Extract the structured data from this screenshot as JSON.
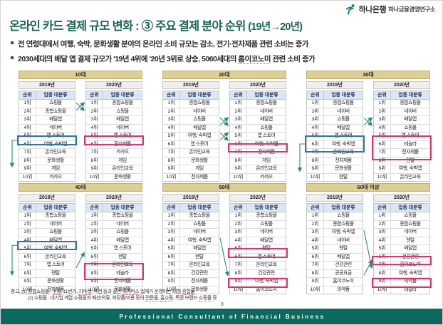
{
  "page": {
    "logo": {
      "bank": "하나은행",
      "institute": "하나금융경영연구소"
    },
    "title": {
      "main": "온라인 카드 결제 규모 변화 : ③ 주요 결제 분야 순위",
      "period": "(19년→20년)"
    },
    "bullets": [
      {
        "segments": [
          {
            "t": "전 연령대에서 여행, 숙박, 문화생활 분야의 온라인 소비 규모는 감소, 전기·전자제품 관련 소비는 증가"
          }
        ]
      },
      {
        "segments": [
          {
            "t": "2030세대의 배달 앱 결제 규모가 '19년 4위에 '20년 3위로 상승, 5060세대의 "
          },
          {
            "t": "홈이코노미",
            "u": true
          },
          {
            "t": " 관련 소비 증가"
          }
        ]
      }
    ],
    "footnotes": [
      {
        "segments": [
          {
            "t": "참고, (1) 종합쇼핑몰 : "
          },
          {
            "t": "쿠팡",
            "u": true
          },
          {
            "t": ", 11번가, "
          },
          {
            "t": "지마켓",
            "u": true
          },
          {
            "t": ", 옥션 등과 같은 "
          },
          {
            "t": "이커머스",
            "u": true
          },
          {
            "t": " 업체가 운영하는 대형 "
          },
          {
            "t": "종합몰",
            "u": true
          }
        ]
      },
      {
        "segments": [
          {
            "t": "(2) 쇼핑몰 : 대기업 계열 쇼핑몰과 패션/의류, 화장품/미용 등의 "
          },
          {
            "t": "전문몰",
            "u": true
          },
          {
            "t": ", "
          },
          {
            "t": "홈쇼핑",
            "u": true
          },
          {
            "t": ", 특정 브랜드 "
          },
          {
            "t": "쇼핑몰",
            "u": true
          },
          {
            "t": " 등"
          }
        ]
      }
    ],
    "page_number": "8",
    "footer_bar": "Professional Consultant of Financial Business"
  },
  "table_common": {
    "year_left": "2019년",
    "year_right": "2020년",
    "col_rank": "순위",
    "col_category": "업종 대분류"
  },
  "colors": {
    "title_green": "#1A685A",
    "arrow_teal": "#2B8A7D",
    "box_blue": "#2E75B6",
    "box_red": "#E0336E",
    "header_tan": "#DCCF92",
    "header_blue": "#DDE7F3",
    "footer_bar": "#0C695E"
  },
  "tables": [
    {
      "age_label": "10대",
      "left_rows": [
        [
          "1위",
          "쇼핑몰"
        ],
        [
          "2위",
          "종합쇼핑몰"
        ],
        [
          "3위",
          "배달앱"
        ],
        [
          "4위",
          "네이버"
        ],
        [
          "5위",
          "앱 스토어"
        ],
        [
          "6위",
          "여행, 숙박앱"
        ],
        [
          "7위",
          "온라인교육"
        ],
        [
          "8위",
          "문화생활"
        ],
        [
          "9위",
          "게임"
        ],
        [
          "10위",
          "카카오"
        ]
      ],
      "right_rows": [
        [
          "1위",
          "종합쇼핑몰"
        ],
        [
          "2위",
          "쇼핑몰"
        ],
        [
          "3위",
          "배달앱"
        ],
        [
          "4위",
          "네이버"
        ],
        [
          "5위",
          "앱 스토어"
        ],
        [
          "6위",
          "전자제품"
        ],
        [
          "7위",
          "카카오"
        ],
        [
          "8위",
          "게임"
        ],
        [
          "9위",
          "온라인교육"
        ],
        [
          "10위",
          "문화생활"
        ]
      ],
      "blue_boxes": [
        [
          6,
          6
        ]
      ],
      "red_boxes": [
        [
          6,
          6
        ]
      ],
      "arrows": [
        {
          "type": "cross",
          "a": 1,
          "b": 2
        },
        {
          "type": "drop",
          "from": 6,
          "to": 9.5
        }
      ]
    },
    {
      "age_label": "20대",
      "left_rows": [
        [
          "1위",
          "종합쇼핑몰"
        ],
        [
          "2위",
          "네이버"
        ],
        [
          "3위",
          "쇼핑몰"
        ],
        [
          "4위",
          "배달앱"
        ],
        [
          "5위",
          "여행, 숙박앱"
        ],
        [
          "6위",
          "앱 스토어"
        ],
        [
          "7위",
          "온라인교육"
        ],
        [
          "8위",
          "문화생활"
        ],
        [
          "9위",
          "게임"
        ],
        [
          "10위",
          "전자제품"
        ]
      ],
      "right_rows": [
        [
          "1위",
          "종합쇼핑몰"
        ],
        [
          "2위",
          "네이버"
        ],
        [
          "3위",
          "배달앱"
        ],
        [
          "4위",
          "쇼핑몰"
        ],
        [
          "5위",
          "앱 스토어"
        ],
        [
          "6위",
          "여행, 숙박앱"
        ],
        [
          "7위",
          "전자제품"
        ],
        [
          "8위",
          "게임"
        ],
        [
          "9위",
          "온라인교육"
        ],
        [
          "10위",
          "카카오"
        ]
      ],
      "blue_boxes": [],
      "red_boxes": [
        [
          7,
          7
        ]
      ],
      "arrows": [
        {
          "type": "cross",
          "a": 3,
          "b": 4
        },
        {
          "type": "cross",
          "a": 5,
          "b": 6
        }
      ]
    },
    {
      "age_label": "30대",
      "left_rows": [
        [
          "1위",
          "종합쇼핑몰"
        ],
        [
          "2위",
          "네이버"
        ],
        [
          "3위",
          "쇼핑몰"
        ],
        [
          "4위",
          "배달앱"
        ],
        [
          "5위",
          "앱 스토어"
        ],
        [
          "6위",
          "여행, 숙박앱"
        ],
        [
          "7위",
          "온라인교육"
        ],
        [
          "8위",
          "전자제품"
        ],
        [
          "9위",
          "문화생활"
        ],
        [
          "10위",
          "렌탈"
        ]
      ],
      "right_rows": [
        [
          "1위",
          "종합쇼핑몰"
        ],
        [
          "2위",
          "네이버"
        ],
        [
          "3위",
          "배달앱"
        ],
        [
          "4위",
          "쇼핑몰"
        ],
        [
          "5위",
          "앱 스토어"
        ],
        [
          "6위",
          "테슬라"
        ],
        [
          "7위",
          "전자제품"
        ],
        [
          "8위",
          "렌탈"
        ],
        [
          "9위",
          "여행, 숙박앱"
        ],
        [
          "10위",
          "온라인교육"
        ]
      ],
      "blue_boxes": [
        [
          6,
          7
        ]
      ],
      "red_boxes": [
        [
          6,
          8
        ]
      ],
      "arrows": [
        {
          "type": "cross",
          "a": 3,
          "b": 4
        },
        {
          "type": "drop",
          "from": 6.5,
          "to": 10.1
        }
      ]
    },
    {
      "age_label": "40대",
      "left_rows": [
        [
          "1위",
          "종합쇼핑몰"
        ],
        [
          "2위",
          "네이버"
        ],
        [
          "3위",
          "쇼핑몰"
        ],
        [
          "4위",
          "배달앱"
        ],
        [
          "5위",
          "여행, 숙박앱"
        ],
        [
          "6위",
          "온라인교육"
        ],
        [
          "7위",
          "앱 스토어"
        ],
        [
          "8위",
          "렌탈"
        ],
        [
          "9위",
          "문화생활"
        ],
        [
          "10위",
          "전자제품"
        ]
      ],
      "right_rows": [
        [
          "1위",
          "종합쇼핑몰"
        ],
        [
          "2위",
          "네이버"
        ],
        [
          "3위",
          "쇼핑몰"
        ],
        [
          "4위",
          "배달앱"
        ],
        [
          "5위",
          "앱 스토어"
        ],
        [
          "6위",
          "렌탈"
        ],
        [
          "7위",
          "온라인교육"
        ],
        [
          "8위",
          "테슬라"
        ],
        [
          "9위",
          "전자제품"
        ],
        [
          "10위",
          "문화생활"
        ]
      ],
      "blue_boxes": [
        [
          5,
          5
        ]
      ],
      "red_boxes": [
        [
          8,
          9
        ]
      ],
      "arrows": [
        {
          "type": "diag",
          "from": 8,
          "to": 6
        },
        {
          "type": "drop",
          "from": 5,
          "to": 8.9
        }
      ]
    },
    {
      "age_label": "50대",
      "left_rows": [
        [
          "1위",
          "종합쇼핑몰"
        ],
        [
          "2위",
          "쇼핑몰"
        ],
        [
          "3위",
          "네이버"
        ],
        [
          "4위",
          "여행, 숙박앱"
        ],
        [
          "5위",
          "배달앱"
        ],
        [
          "6위",
          "렌탈"
        ],
        [
          "7위",
          "온라인교육"
        ],
        [
          "8위",
          "건강관련"
        ],
        [
          "9위",
          "전자제품"
        ],
        [
          "10위",
          "문화생활"
        ]
      ],
      "right_rows": [
        [
          "1위",
          "종합쇼핑몰"
        ],
        [
          "2위",
          "쇼핑몰"
        ],
        [
          "3위",
          "네이버"
        ],
        [
          "4위",
          "배달앱"
        ],
        [
          "5위",
          "렌탈"
        ],
        [
          "6위",
          "앱 스토어"
        ],
        [
          "7위",
          "온라인교육"
        ],
        [
          "8위",
          "건강관련"
        ],
        [
          "9위",
          "여행, 숙박앱"
        ],
        [
          "10위",
          "홈이코노미"
        ]
      ],
      "blue_boxes": [],
      "red_boxes": [
        [
          6,
          6
        ],
        [
          10,
          10
        ]
      ],
      "arrows": [
        {
          "type": "diag",
          "from": 4,
          "to": 9
        }
      ]
    },
    {
      "age_label": "60대 이상",
      "left_rows": [
        [
          "1위",
          "쇼핑몰"
        ],
        [
          "2위",
          "종합쇼핑몰"
        ],
        [
          "3위",
          "여행, 숙박앱"
        ],
        [
          "4위",
          "네이버"
        ],
        [
          "5위",
          "렌탈"
        ],
        [
          "6위",
          "배달앱"
        ],
        [
          "7위",
          "건강관련"
        ],
        [
          "8위",
          "공공요금"
        ],
        [
          "9위",
          "홈이코노미"
        ],
        [
          "10위",
          "의약품"
        ]
      ],
      "right_rows": [
        [
          "1위",
          "쇼핑몰"
        ],
        [
          "2위",
          "종합쇼핑몰"
        ],
        [
          "3위",
          "네이버"
        ],
        [
          "4위",
          "렌탈"
        ],
        [
          "5위",
          "배달앱"
        ],
        [
          "6위",
          "건강관련"
        ],
        [
          "7위",
          "홈이코노미"
        ],
        [
          "8위",
          "여행, 숙박앱"
        ],
        [
          "9위",
          "의약품"
        ],
        [
          "10위",
          "테슬라"
        ]
      ],
      "blue_boxes": [],
      "red_boxes": [
        [
          7,
          7
        ],
        [
          10,
          10
        ]
      ],
      "arrows": [
        {
          "type": "diag",
          "from": 3,
          "to": 8
        },
        {
          "type": "diag",
          "from": 9,
          "to": 7
        }
      ]
    }
  ]
}
